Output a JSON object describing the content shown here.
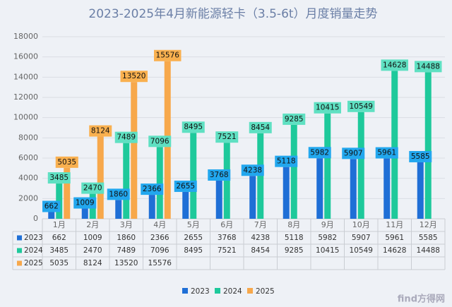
{
  "chart_data": {
    "type": "bar",
    "title": "2023-2025年4月新能源轻卡（3.5-6t）月度销量走势",
    "categories": [
      "1月",
      "2月",
      "3月",
      "4月",
      "5月",
      "6月",
      "7月",
      "8月",
      "9月",
      "10月",
      "11月",
      "12月"
    ],
    "series": [
      {
        "name": "2023",
        "color": "#1f6fd6",
        "label_color": "#22a7ee",
        "values": [
          662,
          1009,
          1860,
          2366,
          2655,
          3768,
          4238,
          5118,
          5982,
          5907,
          5961,
          5585
        ]
      },
      {
        "name": "2024",
        "color": "#1ec99b",
        "label_color": "#5fe0c2",
        "values": [
          3485,
          2470,
          7489,
          7096,
          8495,
          7521,
          8454,
          9285,
          10415,
          10549,
          14628,
          14488
        ]
      },
      {
        "name": "2025",
        "color": "#f7a84b",
        "label_color": "#f9b04f",
        "values": [
          5035,
          8124,
          13520,
          15576,
          null,
          null,
          null,
          null,
          null,
          null,
          null,
          null
        ]
      }
    ],
    "ylim": [
      0,
      18000
    ],
    "yticks": [
      0,
      2000,
      4000,
      6000,
      8000,
      10000,
      12000,
      14000,
      16000,
      18000
    ],
    "grid": true,
    "watermark": "find方得网"
  }
}
